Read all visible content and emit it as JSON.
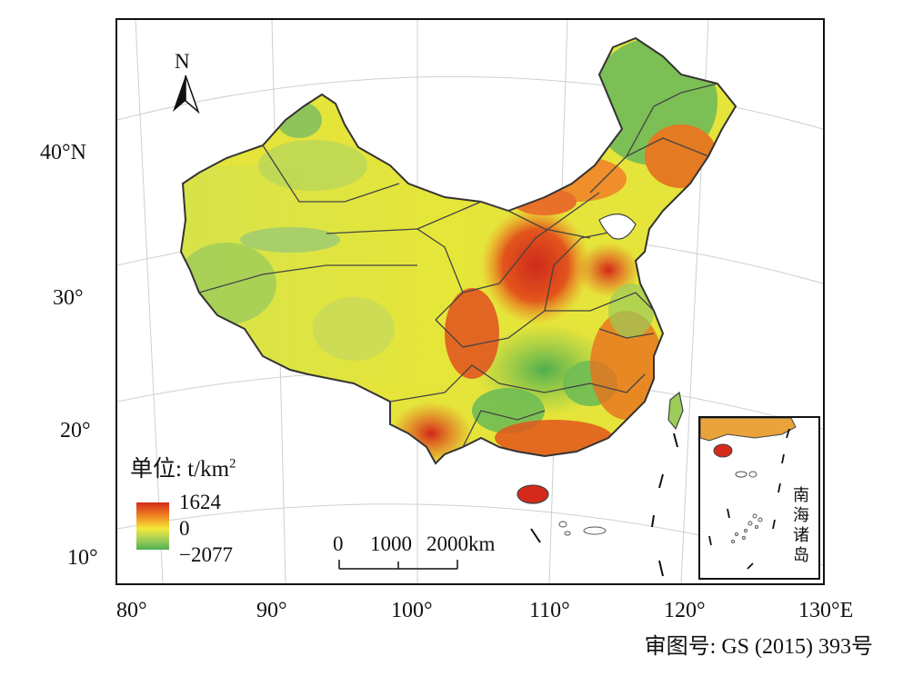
{
  "map": {
    "north_label": "N",
    "lat_labels": [
      "40°N",
      "30°",
      "20°",
      "10°"
    ],
    "lon_labels": [
      "80°",
      "90°",
      "100°",
      "110°",
      "120°",
      "130°E"
    ]
  },
  "legend": {
    "title": "单位: t/km",
    "title_sup": "2",
    "max": "1624",
    "mid": "0",
    "min": "−2077",
    "colors": [
      "#d42a1a",
      "#f08a22",
      "#f5e83a",
      "#9ccc5a",
      "#4fb04f"
    ]
  },
  "scale_bar": {
    "labels": [
      "0",
      "1000",
      "2000km"
    ]
  },
  "inset": {
    "title_chars": [
      "南",
      "海",
      "诸",
      "岛"
    ]
  },
  "review_number": "审图号: GS (2015) 393号"
}
